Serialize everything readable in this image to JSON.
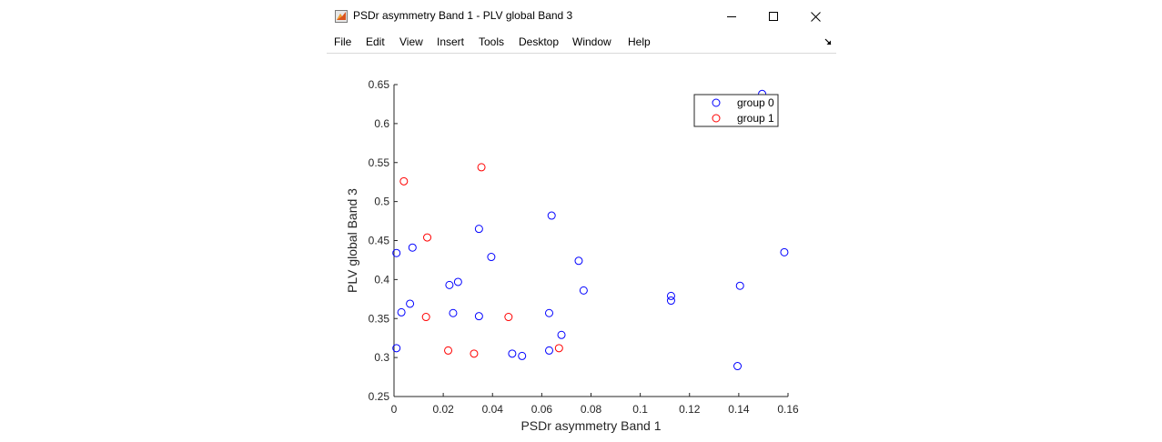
{
  "window": {
    "title": "PSDr asymmetry Band 1 - PLV global Band 3",
    "icon": "matlab-figure-icon",
    "controls": [
      "minimize-icon",
      "maximize-icon",
      "close-icon"
    ]
  },
  "menu": {
    "items": [
      "File",
      "Edit",
      "View",
      "Insert",
      "Tools",
      "Desktop",
      "Window",
      "Help"
    ],
    "dock_icon": "dock-arrow-icon"
  },
  "chart_data": {
    "type": "scatter",
    "xlabel": "PSDr asymmetry Band 1",
    "ylabel": "PLV global Band 3",
    "xlim": [
      0,
      0.16
    ],
    "ylim": [
      0.25,
      0.65
    ],
    "xticks": [
      0,
      0.02,
      0.04,
      0.06,
      0.08,
      0.1,
      0.12,
      0.14,
      0.16
    ],
    "xtick_labels": [
      "0",
      "0.02",
      "0.04",
      "0.06",
      "0.08",
      "0.1",
      "0.12",
      "0.14",
      "0.16"
    ],
    "yticks": [
      0.25,
      0.3,
      0.35,
      0.4,
      0.45,
      0.5,
      0.55,
      0.6,
      0.65
    ],
    "ytick_labels": [
      "0.25",
      "0.3",
      "0.35",
      "0.4",
      "0.45",
      "0.5",
      "0.55",
      "0.6",
      "0.65"
    ],
    "grid": false,
    "legend_position": "top-right",
    "marker": "open-circle",
    "series": [
      {
        "name": "group 0",
        "color": "#0000ff",
        "points": [
          [
            0.001,
            0.434
          ],
          [
            0.001,
            0.312
          ],
          [
            0.003,
            0.358
          ],
          [
            0.0065,
            0.369
          ],
          [
            0.0075,
            0.441
          ],
          [
            0.0225,
            0.393
          ],
          [
            0.024,
            0.357
          ],
          [
            0.026,
            0.397
          ],
          [
            0.0345,
            0.465
          ],
          [
            0.0345,
            0.353
          ],
          [
            0.0395,
            0.429
          ],
          [
            0.048,
            0.305
          ],
          [
            0.052,
            0.302
          ],
          [
            0.063,
            0.357
          ],
          [
            0.063,
            0.309
          ],
          [
            0.064,
            0.482
          ],
          [
            0.068,
            0.329
          ],
          [
            0.075,
            0.424
          ],
          [
            0.077,
            0.386
          ],
          [
            0.1125,
            0.379
          ],
          [
            0.1125,
            0.373
          ],
          [
            0.1395,
            0.289
          ],
          [
            0.1405,
            0.392
          ],
          [
            0.1495,
            0.638
          ],
          [
            0.1585,
            0.435
          ]
        ]
      },
      {
        "name": "group 1",
        "color": "#ff0000",
        "points": [
          [
            0.004,
            0.526
          ],
          [
            0.013,
            0.352
          ],
          [
            0.0135,
            0.454
          ],
          [
            0.022,
            0.309
          ],
          [
            0.0325,
            0.305
          ],
          [
            0.0355,
            0.544
          ],
          [
            0.0465,
            0.352
          ],
          [
            0.067,
            0.312
          ]
        ]
      }
    ]
  }
}
